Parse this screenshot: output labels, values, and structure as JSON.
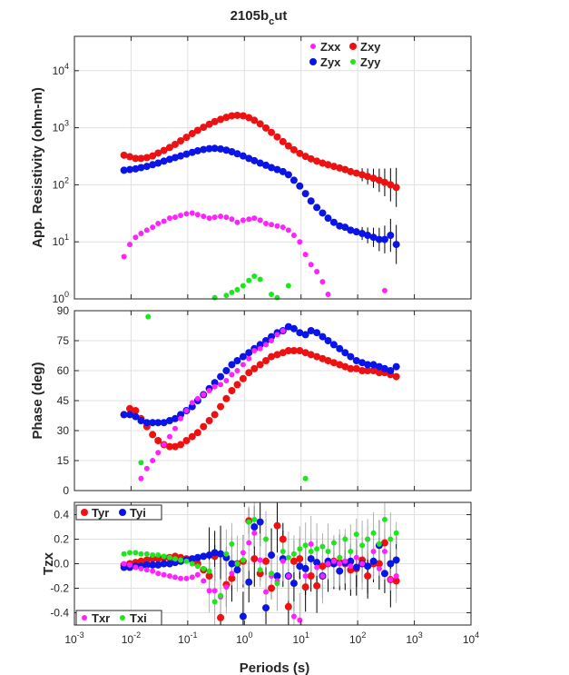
{
  "title_main": "2105b",
  "title_sub": "c",
  "title_tail": "ut",
  "colors": {
    "xx": "#ff22ff",
    "xy": "#ee1111",
    "yx": "#0a14e6",
    "yy": "#1ee61e",
    "axis": "#262626"
  },
  "chart_data": [
    {
      "type": "scatter",
      "panel": "resistivity",
      "ylabel": "App. Resistivity (ohm-m)",
      "yscale": "log",
      "ylim": [
        1,
        40000
      ],
      "yticks": [
        "10",
        "10",
        "10",
        "10",
        "10"
      ],
      "ytick_exp": [
        "0",
        "1",
        "2",
        "3",
        "4"
      ],
      "legend": {
        "position": "top-right",
        "entries": [
          "Zxx",
          "Zxy",
          "Zyx",
          "Zyy"
        ]
      },
      "series": [
        {
          "name": "Zxy",
          "key": "xy",
          "x": [
            0.0075,
            0.0095,
            0.012,
            0.015,
            0.019,
            0.024,
            0.03,
            0.038,
            0.048,
            0.06,
            0.075,
            0.095,
            0.12,
            0.15,
            0.19,
            0.24,
            0.3,
            0.38,
            0.48,
            0.6,
            0.75,
            0.95,
            1.2,
            1.5,
            1.9,
            2.4,
            3,
            3.8,
            4.8,
            6,
            7.5,
            9.5,
            12,
            15,
            19,
            24,
            30,
            38,
            48,
            60,
            75,
            95,
            120,
            150,
            190,
            240,
            300,
            380,
            480
          ],
          "y": [
            330,
            310,
            290,
            290,
            300,
            320,
            360,
            400,
            450,
            510,
            590,
            680,
            790,
            900,
            1020,
            1150,
            1280,
            1400,
            1520,
            1620,
            1650,
            1620,
            1500,
            1350,
            1170,
            990,
            830,
            690,
            570,
            480,
            410,
            355,
            315,
            285,
            260,
            240,
            225,
            210,
            197,
            185,
            170,
            160,
            150,
            140,
            130,
            120,
            110,
            100,
            90
          ]
        },
        {
          "name": "Zyx",
          "key": "yx",
          "x": [
            0.0075,
            0.0095,
            0.012,
            0.015,
            0.019,
            0.024,
            0.03,
            0.038,
            0.048,
            0.06,
            0.075,
            0.095,
            0.12,
            0.15,
            0.19,
            0.24,
            0.3,
            0.38,
            0.48,
            0.6,
            0.75,
            0.95,
            1.2,
            1.5,
            1.9,
            2.4,
            3,
            3.8,
            4.8,
            6,
            7.5,
            9.5,
            12,
            15,
            19,
            24,
            30,
            38,
            48,
            60,
            75,
            95,
            120,
            150,
            190,
            240,
            300,
            380,
            480
          ],
          "y": [
            180,
            185,
            190,
            200,
            210,
            225,
            240,
            260,
            280,
            300,
            320,
            345,
            370,
            395,
            415,
            430,
            435,
            425,
            405,
            380,
            350,
            320,
            290,
            265,
            240,
            220,
            200,
            185,
            170,
            150,
            120,
            95,
            70,
            52,
            40,
            32,
            26,
            22,
            19,
            18,
            16,
            15,
            14,
            13,
            12,
            11,
            11,
            13,
            9
          ]
        },
        {
          "name": "Zxx",
          "key": "xx",
          "x": [
            0.0075,
            0.0095,
            0.012,
            0.015,
            0.019,
            0.024,
            0.03,
            0.038,
            0.048,
            0.06,
            0.075,
            0.095,
            0.12,
            0.15,
            0.19,
            0.24,
            0.3,
            0.38,
            0.48,
            0.6,
            0.75,
            0.95,
            1.2,
            1.5,
            1.9,
            2.4,
            3,
            3.8,
            4.8,
            6,
            7.5,
            9.5,
            12,
            15,
            19,
            24,
            30,
            300
          ],
          "y": [
            5.5,
            9,
            12,
            14,
            16,
            18,
            21,
            23,
            26,
            27,
            29,
            31,
            32,
            30,
            28,
            26,
            27,
            28,
            27,
            25,
            22,
            24,
            25,
            26,
            24,
            21,
            20,
            19,
            18,
            16,
            13,
            10,
            6,
            4,
            3,
            2,
            1.2,
            1.4
          ]
        },
        {
          "name": "Zyy",
          "key": "yy",
          "x": [
            0.3,
            0.48,
            0.6,
            0.75,
            0.95,
            1.2,
            1.5,
            1.9,
            3,
            3.8,
            6
          ],
          "y": [
            1.05,
            1.15,
            1.3,
            1.45,
            1.7,
            2.1,
            2.5,
            2.2,
            1.2,
            1.05,
            1.7
          ]
        }
      ]
    },
    {
      "type": "scatter",
      "panel": "phase",
      "ylabel": "Phase (deg)",
      "ylim": [
        0,
        90
      ],
      "yticks": [
        "0",
        "15",
        "30",
        "45",
        "60",
        "75",
        "90"
      ],
      "series": [
        {
          "name": "Zxy",
          "key": "xy",
          "x": [
            0.0075,
            0.0095,
            0.012,
            0.015,
            0.019,
            0.024,
            0.03,
            0.038,
            0.048,
            0.06,
            0.075,
            0.095,
            0.12,
            0.15,
            0.19,
            0.24,
            0.3,
            0.38,
            0.48,
            0.6,
            0.75,
            0.95,
            1.2,
            1.5,
            1.9,
            2.4,
            3,
            3.8,
            4.8,
            6,
            7.5,
            9.5,
            12,
            15,
            19,
            24,
            30,
            38,
            48,
            60,
            75,
            95,
            120,
            150,
            190,
            240,
            300,
            380,
            480
          ],
          "y": [
            38,
            41,
            40,
            36,
            32,
            28,
            25,
            23,
            22,
            22,
            23,
            25,
            27,
            29,
            32,
            35,
            38,
            42,
            46,
            50,
            53,
            56,
            59,
            61,
            63,
            65,
            67,
            68,
            69,
            70,
            70,
            70,
            69,
            68,
            67,
            66,
            65,
            64,
            63,
            62,
            61,
            61,
            60,
            60,
            60,
            59,
            59,
            58,
            57
          ]
        },
        {
          "name": "Zyx",
          "key": "yx",
          "x": [
            0.0075,
            0.0095,
            0.012,
            0.015,
            0.019,
            0.024,
            0.03,
            0.038,
            0.048,
            0.06,
            0.075,
            0.095,
            0.12,
            0.15,
            0.19,
            0.24,
            0.3,
            0.38,
            0.48,
            0.6,
            0.75,
            0.95,
            1.2,
            1.5,
            1.9,
            2.4,
            3,
            3.8,
            4.8,
            6,
            7.5,
            9.5,
            12,
            15,
            19,
            24,
            30,
            38,
            48,
            60,
            75,
            95,
            120,
            150,
            190,
            240,
            300,
            380,
            480
          ],
          "y": [
            38,
            38,
            37,
            35,
            34,
            34,
            34,
            34,
            35,
            36,
            38,
            40,
            42,
            45,
            48,
            51,
            54,
            57,
            60,
            63,
            65,
            67,
            69,
            71,
            73,
            75,
            77,
            79,
            80,
            82,
            81,
            79,
            78,
            80,
            79,
            77,
            75,
            73,
            71,
            69,
            67,
            65,
            64,
            63,
            63,
            62,
            61,
            60,
            62
          ]
        },
        {
          "name": "Zxx",
          "key": "xx",
          "x": [
            0.015,
            0.019,
            0.024,
            0.03,
            0.038,
            0.048,
            0.06,
            0.075,
            0.095,
            0.12,
            0.15,
            0.19,
            0.24,
            0.3,
            0.38,
            0.48,
            0.6,
            0.75,
            0.95,
            1.2,
            1.5,
            1.9,
            2.4,
            3,
            3.8,
            4.8
          ],
          "y": [
            6,
            11,
            15,
            19,
            23,
            27,
            31,
            36,
            40,
            44,
            46,
            48,
            50,
            52,
            53,
            55,
            58,
            60,
            63,
            66,
            70,
            71,
            73,
            75,
            78,
            80
          ]
        },
        {
          "name": "Zyy",
          "key": "yy",
          "x": [
            0.02,
            0.015,
            12
          ],
          "y": [
            87,
            14,
            6
          ]
        }
      ]
    },
    {
      "type": "scatter",
      "panel": "tipper",
      "ylabel": "Tzx",
      "ylim": [
        -0.5,
        0.5
      ],
      "yticks": [
        "-0.4",
        "-0.2",
        "0.0",
        "0.2",
        "0.4"
      ],
      "xlabel": "Periods (s)",
      "xscale": "log",
      "xlim": [
        0.001,
        10000
      ],
      "xticks": [
        "10",
        "10",
        "10",
        "10",
        "10",
        "10",
        "10",
        "10"
      ],
      "xtick_exp": [
        "-3",
        "-2",
        "-1",
        "0",
        "1",
        "2",
        "3",
        "4"
      ],
      "legend": {
        "entries_top": [
          "Tyr",
          "Tyi"
        ],
        "entries_bottom": [
          "Txr",
          "Txi"
        ],
        "position": "left"
      },
      "series": [
        {
          "name": "Tyr",
          "key": "xy",
          "x": [
            0.0075,
            0.0095,
            0.012,
            0.015,
            0.019,
            0.024,
            0.03,
            0.038,
            0.048,
            0.06,
            0.075,
            0.095,
            0.12,
            0.15,
            0.19,
            0.24,
            0.3,
            0.38,
            0.48,
            0.6,
            0.75,
            0.95,
            1.2,
            1.5,
            1.9,
            2.4,
            3,
            3.8,
            4.8,
            6,
            7.5,
            9.5,
            12,
            15,
            19,
            24,
            30,
            38,
            48,
            60,
            75,
            95,
            120,
            150,
            190,
            240,
            300,
            380,
            480
          ],
          "y": [
            -0.01,
            0.0,
            0.01,
            0.02,
            0.03,
            0.04,
            0.04,
            0.05,
            0.05,
            0.06,
            0.05,
            0.04,
            0.03,
            0.0,
            -0.05,
            -0.1,
            0.06,
            -0.44,
            -0.17,
            -0.12,
            0.0,
            0.02,
            0.35,
            0.04,
            -0.08,
            0.02,
            -0.2,
            0.31,
            0.2,
            -0.35,
            0.02,
            0.04,
            -0.19,
            -0.1,
            -0.18,
            -0.02,
            0.0,
            0.02,
            0.01,
            0.0,
            -0.05,
            -0.04,
            0.03,
            -0.1,
            0.0,
            0.0,
            0.17,
            -0.13,
            -0.14
          ]
        },
        {
          "name": "Tyi",
          "key": "yx",
          "x": [
            0.0075,
            0.0095,
            0.012,
            0.015,
            0.019,
            0.024,
            0.03,
            0.038,
            0.048,
            0.06,
            0.075,
            0.095,
            0.12,
            0.15,
            0.19,
            0.24,
            0.3,
            0.38,
            0.48,
            0.6,
            0.75,
            0.95,
            1.2,
            1.5,
            1.9,
            2.4,
            3,
            3.8,
            4.8,
            6,
            7.5,
            9.5,
            12,
            15,
            19,
            24,
            30,
            38,
            48,
            60,
            75,
            95,
            120,
            150,
            190,
            240,
            300,
            380,
            480
          ],
          "y": [
            -0.03,
            -0.03,
            -0.02,
            -0.02,
            -0.01,
            -0.01,
            -0.01,
            0.0,
            0.0,
            0.01,
            0.02,
            0.03,
            0.04,
            0.05,
            0.06,
            0.07,
            0.09,
            0.08,
            0.05,
            0.0,
            -0.05,
            -0.43,
            -0.15,
            0.3,
            0.34,
            -0.36,
            0.07,
            -0.1,
            0.04,
            -0.1,
            -0.16,
            -0.02,
            -0.04,
            0.04,
            0.01,
            -0.1,
            0.02,
            0.0,
            -0.06,
            0.01,
            0.02,
            -0.03,
            0.0,
            -0.02,
            0.02,
            0.15,
            -0.08,
            0.0,
            0.03
          ]
        },
        {
          "name": "Txr",
          "key": "xx",
          "x": [
            0.0075,
            0.0095,
            0.012,
            0.015,
            0.019,
            0.024,
            0.03,
            0.038,
            0.048,
            0.06,
            0.075,
            0.095,
            0.12,
            0.15,
            0.19,
            0.24,
            0.3,
            0.38,
            0.48,
            0.6,
            0.75,
            0.95,
            1.2,
            1.5,
            1.9,
            2.4,
            3,
            3.8,
            4.8,
            6,
            7.5,
            9.5,
            12,
            15,
            19,
            24,
            30,
            38,
            48,
            60,
            75,
            95,
            120,
            150,
            190,
            240,
            300,
            380,
            480
          ],
          "y": [
            0.0,
            -0.01,
            -0.03,
            -0.04,
            -0.05,
            -0.06,
            -0.08,
            -0.09,
            -0.1,
            -0.11,
            -0.12,
            -0.12,
            -0.11,
            -0.09,
            -0.14,
            -0.22,
            -0.22,
            -0.27,
            -0.19,
            -0.08,
            0.0,
            0.09,
            0.17,
            0.25,
            0.03,
            -0.23,
            -0.1,
            -0.14,
            0.02,
            -0.1,
            -0.43,
            -0.46,
            -0.1,
            0.16,
            -0.03,
            -0.1,
            0.0,
            0.02,
            0.0,
            0.02,
            -0.02,
            0.05,
            0.0,
            0.2,
            0.1,
            -0.04,
            0.1,
            -0.13,
            -0.1
          ]
        },
        {
          "name": "Txi",
          "key": "yy",
          "x": [
            0.0075,
            0.0095,
            0.012,
            0.015,
            0.019,
            0.024,
            0.03,
            0.038,
            0.048,
            0.06,
            0.075,
            0.095,
            0.12,
            0.15,
            0.19,
            0.24,
            0.3,
            0.38,
            0.48,
            0.6,
            0.75,
            0.95,
            1.2,
            1.5,
            1.9,
            2.4,
            3,
            3.8,
            4.8,
            6,
            7.5,
            9.5,
            12,
            15,
            19,
            24,
            30,
            38,
            48,
            60,
            75,
            95,
            120,
            150,
            190,
            240,
            300,
            380,
            480
          ],
          "y": [
            0.08,
            0.09,
            0.09,
            0.08,
            0.08,
            0.07,
            0.07,
            0.06,
            0.05,
            0.04,
            0.03,
            0.02,
            0.0,
            -0.02,
            -0.04,
            -0.06,
            -0.31,
            -0.26,
            0.08,
            0.16,
            0.0,
            0.03,
            0.34,
            0.36,
            -0.05,
            0.2,
            -0.08,
            -0.16,
            0.1,
            0.05,
            0.08,
            0.12,
            0.15,
            0.1,
            0.12,
            0.14,
            0.1,
            0.17,
            0.05,
            0.2,
            0.1,
            0.24,
            0.15,
            0.2,
            0.25,
            0.16,
            0.36,
            0.2,
            0.25
          ]
        }
      ]
    }
  ]
}
